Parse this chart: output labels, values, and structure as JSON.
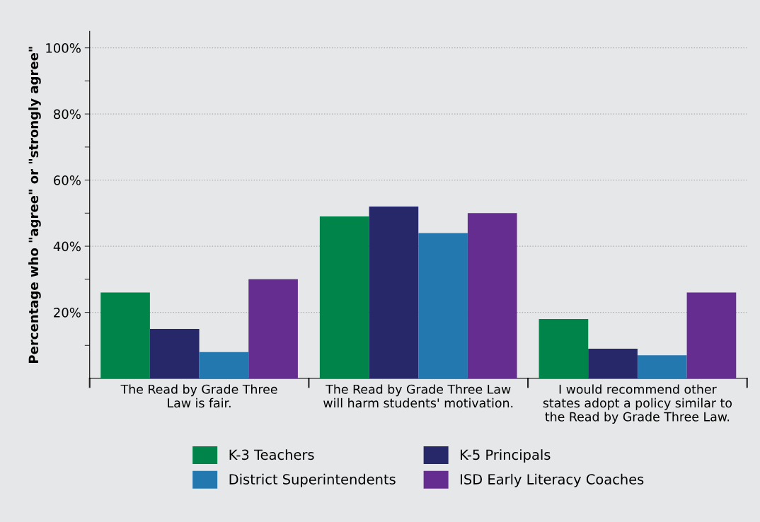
{
  "chart_data": {
    "type": "bar",
    "ylabel": "Percentage who \"agree\" or \"strongly agree\"",
    "categories": [
      "The Read by Grade Three\nLaw is fair.",
      "The Read by Grade Three Law\nwill harm students' motivation.",
      "I would recommend other\nstates adopt a policy similar to\nthe Read by Grade Three Law."
    ],
    "series": [
      {
        "name": "K-3 Teachers",
        "color": "#00844a",
        "values": [
          26,
          49,
          18
        ]
      },
      {
        "name": "K-5 Principals",
        "color": "#27286a",
        "values": [
          15,
          52,
          9
        ]
      },
      {
        "name": "District Superintendents",
        "color": "#2378b0",
        "values": [
          8,
          44,
          7
        ]
      },
      {
        "name": "ISD Early Literacy Coaches",
        "color": "#662d91",
        "values": [
          30,
          50,
          26
        ]
      }
    ],
    "ylim": [
      0,
      105
    ],
    "yticks": [
      {
        "value": 10,
        "label": null
      },
      {
        "value": 20,
        "label": "20%"
      },
      {
        "value": 30,
        "label": null
      },
      {
        "value": 40,
        "label": "40%"
      },
      {
        "value": 50,
        "label": null
      },
      {
        "value": 60,
        "label": "60%"
      },
      {
        "value": 70,
        "label": null
      },
      {
        "value": 80,
        "label": "80%"
      },
      {
        "value": 90,
        "label": null
      },
      {
        "value": 100,
        "label": "100%"
      }
    ],
    "grid": "y",
    "legend": "bottom"
  }
}
